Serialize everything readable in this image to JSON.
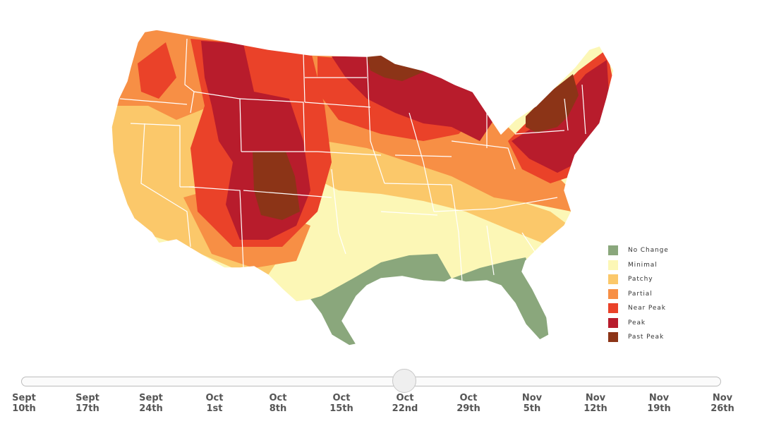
{
  "colors": {
    "no_change": "#8aa77c",
    "minimal": "#fcf7b6",
    "patchy": "#fbc86a",
    "partial": "#f78f45",
    "near_peak": "#ea4229",
    "peak": "#b81c2c",
    "past_peak": "#8c3417"
  },
  "legend": [
    {
      "label": "No Change",
      "color": "#8aa77c"
    },
    {
      "label": "Minimal",
      "color": "#fcf7b6"
    },
    {
      "label": "Patchy",
      "color": "#fbc86a"
    },
    {
      "label": "Partial",
      "color": "#f78f45"
    },
    {
      "label": "Near Peak",
      "color": "#ea4229"
    },
    {
      "label": "Peak",
      "color": "#b81c2c"
    },
    {
      "label": "Past Peak",
      "color": "#8c3417"
    }
  ],
  "timeline": {
    "selected_index": 6,
    "dates": [
      {
        "month": "Sept",
        "day": "10th"
      },
      {
        "month": "Sept",
        "day": "17th"
      },
      {
        "month": "Sept",
        "day": "24th"
      },
      {
        "month": "Oct",
        "day": "1st"
      },
      {
        "month": "Oct",
        "day": "8th"
      },
      {
        "month": "Oct",
        "day": "15th"
      },
      {
        "month": "Oct",
        "day": "22nd"
      },
      {
        "month": "Oct",
        "day": "29th"
      },
      {
        "month": "Nov",
        "day": "5th"
      },
      {
        "month": "Nov",
        "day": "12th"
      },
      {
        "month": "Nov",
        "day": "19th"
      },
      {
        "month": "Nov",
        "day": "26th"
      }
    ]
  }
}
